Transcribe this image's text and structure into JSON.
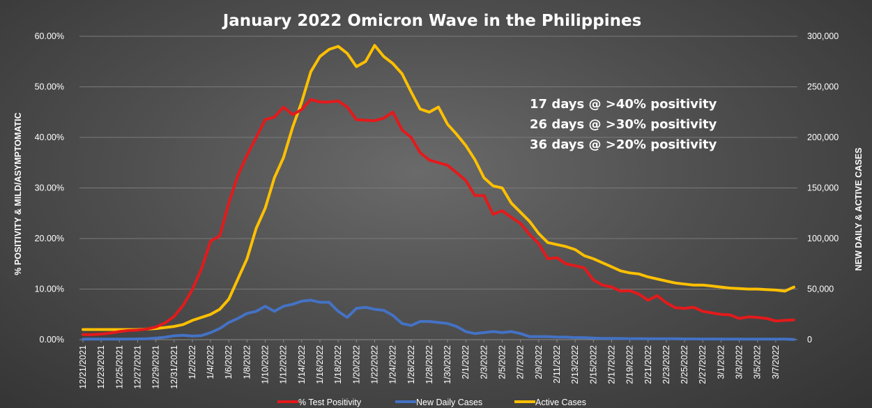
{
  "chart_data": {
    "type": "line",
    "title": "January 2022 Omicron Wave in the Philippines",
    "ylabel_left": "% POSITIVITY & MILD/ASYMPTOMATIC",
    "ylabel_right": "NEW DAILY & ACTIVE CASES",
    "ylim_left": [
      0,
      60
    ],
    "ylim_right": [
      0,
      300000
    ],
    "yticks_left": [
      "0.00%",
      "10.00%",
      "20.00%",
      "30.00%",
      "40.00%",
      "50.00%",
      "60.00%"
    ],
    "yticks_right": [
      "0",
      "50,000",
      "100,000",
      "150,000",
      "200,000",
      "250,000",
      "300,000"
    ],
    "x_tick_labels": [
      "12/21/2021",
      "12/23/2021",
      "12/25/2021",
      "12/27/2021",
      "12/29/2021",
      "12/31/2021",
      "1/2/2022",
      "1/4/2022",
      "1/6/2022",
      "1/8/2022",
      "1/10/2022",
      "1/12/2022",
      "1/14/2022",
      "1/16/2022",
      "1/18/2022",
      "1/20/2022",
      "1/22/2022",
      "1/24/2022",
      "1/26/2022",
      "1/28/2022",
      "1/30/2022",
      "2/1/2022",
      "2/3/2022",
      "2/5/2022",
      "2/7/2022",
      "2/9/2022",
      "2/11/2022",
      "2/13/2022",
      "2/15/2022",
      "2/17/2022",
      "2/19/2022",
      "2/21/2022",
      "2/23/2022",
      "2/25/2022",
      "2/27/2022",
      "3/1/2022",
      "3/3/2022",
      "3/5/2022",
      "3/7/2022"
    ],
    "grid": true,
    "legend_position": "bottom",
    "annotations": [
      "17 days @ >40% positivity",
      "26 days @ >30% positivity",
      "36 days @ >20% positivity"
    ],
    "series": [
      {
        "name": "% Test Positivity",
        "axis": "left",
        "color": "#e31a1c",
        "values": [
          1.0,
          1.0,
          1.1,
          1.3,
          1.6,
          1.8,
          1.9,
          2.1,
          2.5,
          3.3,
          4.6,
          6.8,
          9.9,
          14.0,
          19.5,
          20.5,
          27.0,
          32.5,
          36.5,
          40.0,
          43.5,
          44.0,
          46.0,
          44.5,
          45.5,
          47.5,
          47.0,
          47.0,
          47.2,
          46.0,
          43.5,
          43.4,
          43.3,
          43.8,
          45.0,
          41.5,
          40.0,
          37.0,
          35.5,
          35.0,
          34.5,
          33.0,
          31.5,
          28.5,
          28.5,
          24.8,
          25.5,
          24.2,
          23.0,
          20.8,
          19.0,
          16.0,
          16.2,
          15.0,
          14.6,
          14.2,
          11.8,
          10.8,
          10.4,
          9.6,
          9.7,
          9.0,
          7.8,
          8.7,
          7.3,
          6.3,
          6.2,
          6.4,
          5.6,
          5.3,
          5.0,
          4.9,
          4.2,
          4.5,
          4.4,
          4.2,
          3.7,
          3.8,
          3.9
        ]
      },
      {
        "name": "New Daily Cases",
        "axis": "right",
        "color": "#4472c4",
        "values": [
          500,
          500,
          500,
          500,
          500,
          600,
          700,
          900,
          1500,
          2400,
          3800,
          4300,
          3500,
          4000,
          7000,
          11000,
          17000,
          21000,
          26000,
          28000,
          33000,
          28000,
          33000,
          35000,
          38000,
          39000,
          37000,
          37000,
          28000,
          22000,
          31000,
          32000,
          30000,
          29000,
          24000,
          16000,
          14000,
          18000,
          18000,
          17000,
          16000,
          13000,
          8000,
          6000,
          7000,
          8000,
          7000,
          8000,
          6000,
          3000,
          3000,
          3000,
          2500,
          2500,
          2000,
          2000,
          1500,
          1200,
          1200,
          1100,
          1000,
          1000,
          900,
          900,
          800,
          800,
          700,
          700,
          600,
          600,
          600,
          500,
          500,
          500,
          500,
          500,
          500,
          500,
          200
        ]
      },
      {
        "name": "Active Cases",
        "axis": "right",
        "color": "#ffc000",
        "values": [
          10000,
          10000,
          10000,
          10000,
          10000,
          10000,
          10000,
          10500,
          11000,
          12000,
          13000,
          15000,
          19000,
          22000,
          25000,
          30000,
          40000,
          60000,
          80000,
          110000,
          130000,
          160000,
          180000,
          210000,
          235000,
          265000,
          280000,
          287000,
          290000,
          283000,
          270000,
          275000,
          291000,
          280000,
          273000,
          263000,
          245000,
          228000,
          225000,
          230000,
          213000,
          203000,
          192000,
          178000,
          160000,
          152000,
          150000,
          135000,
          126000,
          117000,
          105000,
          96000,
          94000,
          92000,
          89000,
          83000,
          80000,
          76000,
          72000,
          68000,
          66000,
          65000,
          62000,
          60000,
          58000,
          56000,
          55000,
          54000,
          54000,
          53000,
          52000,
          51000,
          50500,
          50000,
          50000,
          49500,
          49000,
          48000,
          52000
        ]
      }
    ]
  }
}
